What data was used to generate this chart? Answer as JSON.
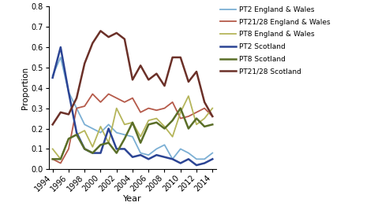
{
  "years": [
    1994,
    1995,
    1996,
    1997,
    1998,
    1999,
    2000,
    2001,
    2002,
    2003,
    2004,
    2005,
    2006,
    2007,
    2008,
    2009,
    2010,
    2011,
    2012,
    2013,
    2014
  ],
  "PT2_EW": [
    0.46,
    0.55,
    0.38,
    0.3,
    0.22,
    0.2,
    0.18,
    0.22,
    0.18,
    0.17,
    0.16,
    0.08,
    0.07,
    0.1,
    0.12,
    0.05,
    0.1,
    0.08,
    0.05,
    0.05,
    0.08
  ],
  "PT2128_EW": [
    0.05,
    0.03,
    0.1,
    0.3,
    0.31,
    0.37,
    0.33,
    0.37,
    0.35,
    0.33,
    0.35,
    0.28,
    0.3,
    0.29,
    0.3,
    0.33,
    0.25,
    0.26,
    0.28,
    0.3,
    0.26
  ],
  "PT8_EW": [
    0.1,
    0.05,
    0.15,
    0.17,
    0.19,
    0.11,
    0.21,
    0.13,
    0.3,
    0.22,
    0.23,
    0.16,
    0.24,
    0.25,
    0.21,
    0.16,
    0.28,
    0.36,
    0.22,
    0.25,
    0.3
  ],
  "PT2_Scot": [
    0.45,
    0.6,
    0.38,
    0.18,
    0.1,
    0.08,
    0.08,
    0.2,
    0.1,
    0.1,
    0.06,
    0.07,
    0.05,
    0.07,
    0.06,
    0.05,
    0.03,
    0.05,
    0.02,
    0.03,
    0.05
  ],
  "PT8_Scot": [
    0.05,
    0.05,
    0.15,
    0.17,
    0.1,
    0.08,
    0.12,
    0.13,
    0.08,
    0.15,
    0.23,
    0.13,
    0.22,
    0.23,
    0.2,
    0.24,
    0.3,
    0.2,
    0.25,
    0.21,
    0.22
  ],
  "PT2128_Scot": [
    0.22,
    0.28,
    0.27,
    0.35,
    0.52,
    0.62,
    0.68,
    0.65,
    0.67,
    0.64,
    0.44,
    0.51,
    0.44,
    0.47,
    0.41,
    0.55,
    0.55,
    0.43,
    0.48,
    0.33,
    0.26
  ],
  "color_PT2_EW": "#7bafd4",
  "color_PT2128_EW": "#b55a4a",
  "color_PT8_EW": "#b5b55a",
  "color_PT2_Scot": "#2b4494",
  "color_PT8_Scot": "#5a6e28",
  "color_PT2128_Scot": "#6b3028",
  "lw_thin": 1.3,
  "lw_thick": 1.8,
  "ylabel": "Proportion",
  "xlabel": "Year",
  "ylim": [
    0,
    0.8
  ],
  "yticks": [
    0,
    0.1,
    0.2,
    0.3,
    0.4,
    0.5,
    0.6,
    0.7,
    0.8
  ],
  "legend_labels": [
    "PT2 England & Wales",
    "PT21/28 England & Wales",
    "PT8 England & Wales",
    "PT2 Scotland",
    "PT8 Scotland",
    "PT21/28 Scotland"
  ],
  "xtick_labels": [
    "1994",
    "1996",
    "1998",
    "2000",
    "2002",
    "2004",
    "2006",
    "2008",
    "2010",
    "2012",
    "2014"
  ],
  "xtick_positions": [
    1994,
    1996,
    1998,
    2000,
    2002,
    2004,
    2006,
    2008,
    2010,
    2012,
    2014
  ],
  "figwidth": 4.74,
  "figheight": 2.76,
  "dpi": 100
}
